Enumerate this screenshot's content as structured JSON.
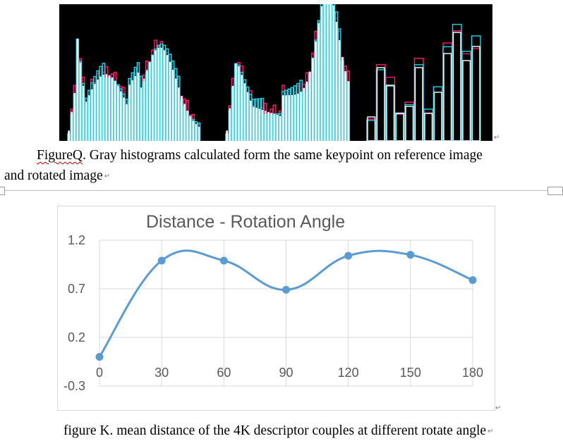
{
  "figure_q": {
    "caption_label": "FigureQ",
    "caption_rest": ". Gray histograms calculated form the same keypoint on reference image",
    "caption_line2": "and rotated image",
    "colors": {
      "background": "#000000",
      "reference": "#ff1a70",
      "rotated": "#19d8e6",
      "overlap": "#ffffff"
    }
  },
  "figure_k": {
    "caption": "figure K. mean distance of the 4K descriptor couples at different rotate angle"
  },
  "chart_data": {
    "type": "line",
    "title": "Distance - Rotation Angle",
    "xlabel": "",
    "ylabel": "",
    "x": [
      0,
      30,
      60,
      90,
      120,
      150,
      180
    ],
    "series": [
      {
        "values": [
          0.0,
          0.99,
          0.99,
          0.69,
          1.04,
          1.05,
          0.79
        ],
        "color": "#5b9bd5",
        "smooth": true
      }
    ],
    "ylim": [
      -0.3,
      1.2
    ],
    "yticks": [
      "1.2",
      "0.7",
      "0.2",
      "-0.3"
    ],
    "xticks": [
      "0",
      "30",
      "60",
      "90",
      "120",
      "150",
      "180"
    ],
    "grid": true,
    "legend": "none"
  }
}
